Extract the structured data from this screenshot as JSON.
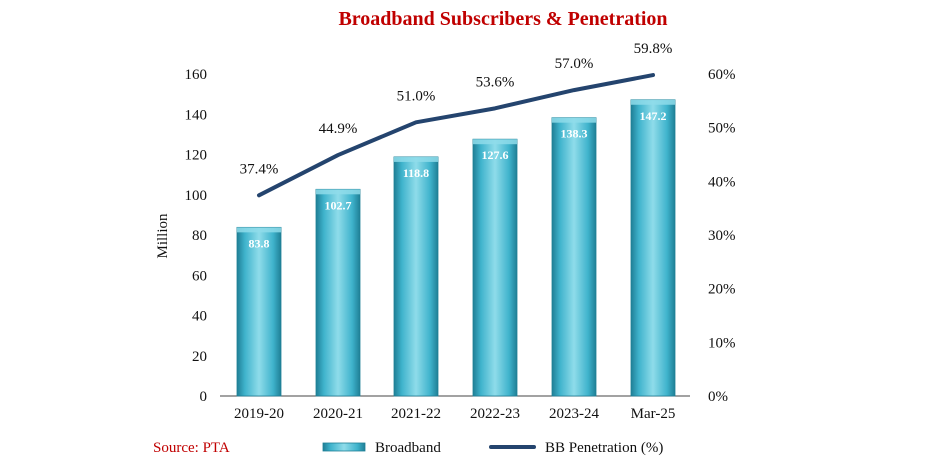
{
  "chart_data": {
    "type": "bar",
    "title": "Broadband Subscribers & Penetration",
    "ylabel": "Million",
    "ylim": [
      0,
      160
    ],
    "yticks": [
      0,
      20,
      40,
      60,
      80,
      100,
      120,
      140,
      160
    ],
    "y2lim": [
      0,
      60
    ],
    "y2ticks": [
      "0%",
      "10%",
      "20%",
      "30%",
      "40%",
      "50%",
      "60%"
    ],
    "categories": [
      "2019-20",
      "2020-21",
      "2021-22",
      "2022-23",
      "2023-24",
      "Mar-25"
    ],
    "series": [
      {
        "name": "Broadband",
        "type": "bar",
        "axis": "left",
        "values": [
          83.8,
          102.7,
          118.8,
          127.6,
          138.3,
          147.2
        ],
        "labels": [
          "83.8",
          "102.7",
          "118.8",
          "127.6",
          "138.3",
          "147.2"
        ]
      },
      {
        "name": "BB Penetration (%)",
        "type": "line",
        "axis": "right",
        "values": [
          37.4,
          44.9,
          51.0,
          53.6,
          57.0,
          59.8
        ],
        "labels": [
          "37.4%",
          "44.9%",
          "51.0%",
          "53.6%",
          "57.0%",
          "59.8%"
        ]
      }
    ],
    "legend": "bottom",
    "grid": false,
    "source": "Source: PTA",
    "colors": {
      "title": "#c00000",
      "source": "#c00000",
      "bar_light": "#8fdcea",
      "bar_mid": "#3fb3cc",
      "bar_dark": "#1f7f96",
      "line": "#24446e"
    }
  }
}
